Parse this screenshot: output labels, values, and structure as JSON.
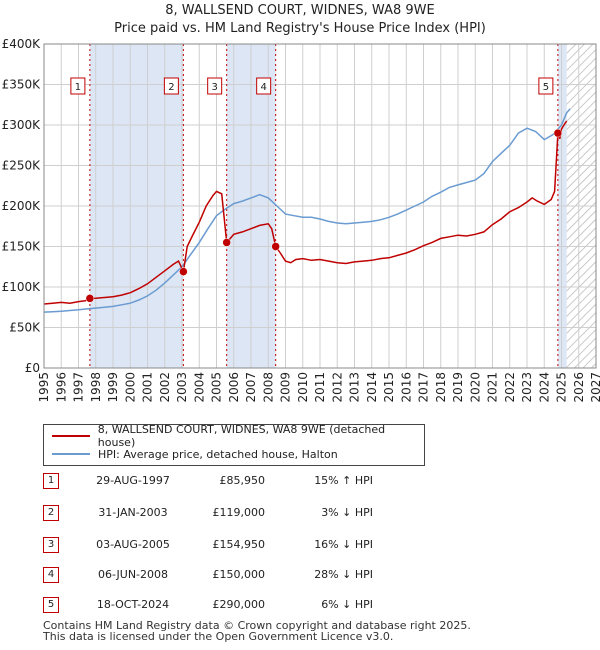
{
  "title": "8, WALLSEND COURT, WIDNES, WA8 9WE",
  "subtitle": "Price paid vs. HM Land Registry's House Price Index (HPI)",
  "colors": {
    "property": "#c00000",
    "hpi": "#6a9bd1",
    "shade": "#dde6f5",
    "grid": "#cfcfcf"
  },
  "chart_data": {
    "type": "line",
    "title": "8, WALLSEND COURT, WIDNES, WA8 9WE",
    "subtitle": "Price paid vs. HM Land Registry's House Price Index (HPI)",
    "xlim": [
      1995,
      2027
    ],
    "ylim": [
      0,
      400000
    ],
    "xticks": [
      "1995",
      "1996",
      "1997",
      "1998",
      "1999",
      "2000",
      "2001",
      "2002",
      "2003",
      "2004",
      "2005",
      "2006",
      "2007",
      "2008",
      "2009",
      "2010",
      "2011",
      "2012",
      "2013",
      "2014",
      "2015",
      "2016",
      "2017",
      "2018",
      "2019",
      "2020",
      "2021",
      "2022",
      "2023",
      "2024",
      "2025",
      "2026",
      "2027"
    ],
    "yticks": [
      {
        "value": 0,
        "label": "£0"
      },
      {
        "value": 50000,
        "label": "£50K"
      },
      {
        "value": 100000,
        "label": "£100K"
      },
      {
        "value": 150000,
        "label": "£150K"
      },
      {
        "value": 200000,
        "label": "£200K"
      },
      {
        "value": 250000,
        "label": "£250K"
      },
      {
        "value": 300000,
        "label": "£300K"
      },
      {
        "value": 350000,
        "label": "£350K"
      },
      {
        "value": 400000,
        "label": "£400K"
      }
    ],
    "shaded_ranges": [
      [
        1997.66,
        2003.08
      ],
      [
        2005.59,
        2008.43
      ],
      [
        2024.79,
        2025.3
      ]
    ],
    "forecast_from": 2025.3,
    "series": [
      {
        "name": "8, WALLSEND COURT, WIDNES, WA8 9WE (detached house)",
        "color": "#c00000",
        "x": [
          1995.0,
          1995.5,
          1996.0,
          1996.5,
          1997.0,
          1997.4,
          1997.66,
          1998.0,
          1998.5,
          1999.0,
          1999.5,
          2000.0,
          2000.5,
          2001.0,
          2001.5,
          2002.0,
          2002.5,
          2002.8,
          2003.08,
          2003.3,
          2003.6,
          2004.0,
          2004.4,
          2004.8,
          2005.0,
          2005.3,
          2005.59,
          2005.8,
          2006.0,
          2006.5,
          2007.0,
          2007.5,
          2008.0,
          2008.2,
          2008.43,
          2008.7,
          2009.0,
          2009.3,
          2009.6,
          2010.0,
          2010.5,
          2011.0,
          2011.5,
          2012.0,
          2012.5,
          2013.0,
          2013.5,
          2014.0,
          2014.5,
          2015.0,
          2015.5,
          2016.0,
          2016.5,
          2017.0,
          2017.5,
          2018.0,
          2018.5,
          2019.0,
          2019.5,
          2020.0,
          2020.5,
          2021.0,
          2021.5,
          2022.0,
          2022.5,
          2023.0,
          2023.3,
          2023.6,
          2024.0,
          2024.4,
          2024.6,
          2024.79,
          2024.9,
          2025.0,
          2025.2,
          2025.3
        ],
        "y": [
          79000,
          80000,
          81000,
          80000,
          82000,
          83000,
          85950,
          86000,
          87000,
          88000,
          90000,
          93000,
          98000,
          104000,
          112000,
          120000,
          128000,
          132000,
          119000,
          150000,
          163000,
          180000,
          200000,
          213000,
          218000,
          215000,
          154950,
          160000,
          165000,
          168000,
          172000,
          176000,
          178000,
          172000,
          150000,
          142000,
          132000,
          130000,
          134000,
          135000,
          133000,
          134000,
          132000,
          130000,
          129000,
          131000,
          132000,
          133000,
          135000,
          136000,
          139000,
          142000,
          146000,
          151000,
          155000,
          160000,
          162000,
          164000,
          163000,
          165000,
          168000,
          177000,
          184000,
          193000,
          198000,
          205000,
          210000,
          206000,
          202000,
          208000,
          218000,
          290000,
          283000,
          295000,
          302000,
          305000
        ]
      },
      {
        "name": "HPI: Average price, detached house, Halton",
        "color": "#6a9bd1",
        "x": [
          1995.0,
          1995.5,
          1996.0,
          1996.5,
          1997.0,
          1997.5,
          1998.0,
          1998.5,
          1999.0,
          1999.5,
          2000.0,
          2000.5,
          2001.0,
          2001.5,
          2002.0,
          2002.5,
          2003.0,
          2003.5,
          2004.0,
          2004.5,
          2005.0,
          2005.5,
          2006.0,
          2006.5,
          2007.0,
          2007.5,
          2008.0,
          2008.5,
          2009.0,
          2009.5,
          2010.0,
          2010.5,
          2011.0,
          2011.5,
          2012.0,
          2012.5,
          2013.0,
          2013.5,
          2014.0,
          2014.5,
          2015.0,
          2015.5,
          2016.0,
          2016.5,
          2017.0,
          2017.5,
          2018.0,
          2018.5,
          2019.0,
          2019.5,
          2020.0,
          2020.5,
          2021.0,
          2021.5,
          2022.0,
          2022.5,
          2023.0,
          2023.5,
          2024.0,
          2024.5,
          2025.0,
          2025.3,
          2025.5
        ],
        "y": [
          69000,
          69500,
          70000,
          71000,
          72000,
          73000,
          74000,
          75000,
          76000,
          78000,
          80000,
          84000,
          89000,
          96000,
          105000,
          115000,
          125000,
          140000,
          155000,
          172000,
          188000,
          196000,
          203000,
          206000,
          210000,
          214000,
          210000,
          200000,
          190000,
          188000,
          186000,
          186000,
          184000,
          181000,
          179000,
          178000,
          179000,
          180000,
          181000,
          183000,
          186000,
          190000,
          195000,
          200000,
          205000,
          212000,
          217000,
          223000,
          226000,
          229000,
          232000,
          240000,
          255000,
          265000,
          275000,
          290000,
          296000,
          292000,
          282000,
          288000,
          300000,
          315000,
          320000
        ]
      }
    ],
    "markers": [
      {
        "label": "1",
        "x": 1997.66,
        "y": 85950
      },
      {
        "label": "2",
        "x": 2003.08,
        "y": 119000
      },
      {
        "label": "3",
        "x": 2005.59,
        "y": 154950
      },
      {
        "label": "4",
        "x": 2008.43,
        "y": 150000
      },
      {
        "label": "5",
        "x": 2024.79,
        "y": 290000
      }
    ]
  },
  "legend": {
    "property": "8, WALLSEND COURT, WIDNES, WA8 9WE (detached house)",
    "hpi": "HPI: Average price, detached house, Halton"
  },
  "sales": [
    {
      "num": "1",
      "date": "29-AUG-1997",
      "price": "£85,950",
      "hpi": "15% ↑ HPI"
    },
    {
      "num": "2",
      "date": "31-JAN-2003",
      "price": "£119,000",
      "hpi": "3% ↓ HPI"
    },
    {
      "num": "3",
      "date": "03-AUG-2005",
      "price": "£154,950",
      "hpi": "16% ↓ HPI"
    },
    {
      "num": "4",
      "date": "06-JUN-2008",
      "price": "£150,000",
      "hpi": "28% ↓ HPI"
    },
    {
      "num": "5",
      "date": "18-OCT-2024",
      "price": "£290,000",
      "hpi": "6% ↓ HPI"
    }
  ],
  "footer": {
    "line1": "Contains HM Land Registry data © Crown copyright and database right 2025.",
    "line2": "This data is licensed under the Open Government Licence v3.0."
  }
}
